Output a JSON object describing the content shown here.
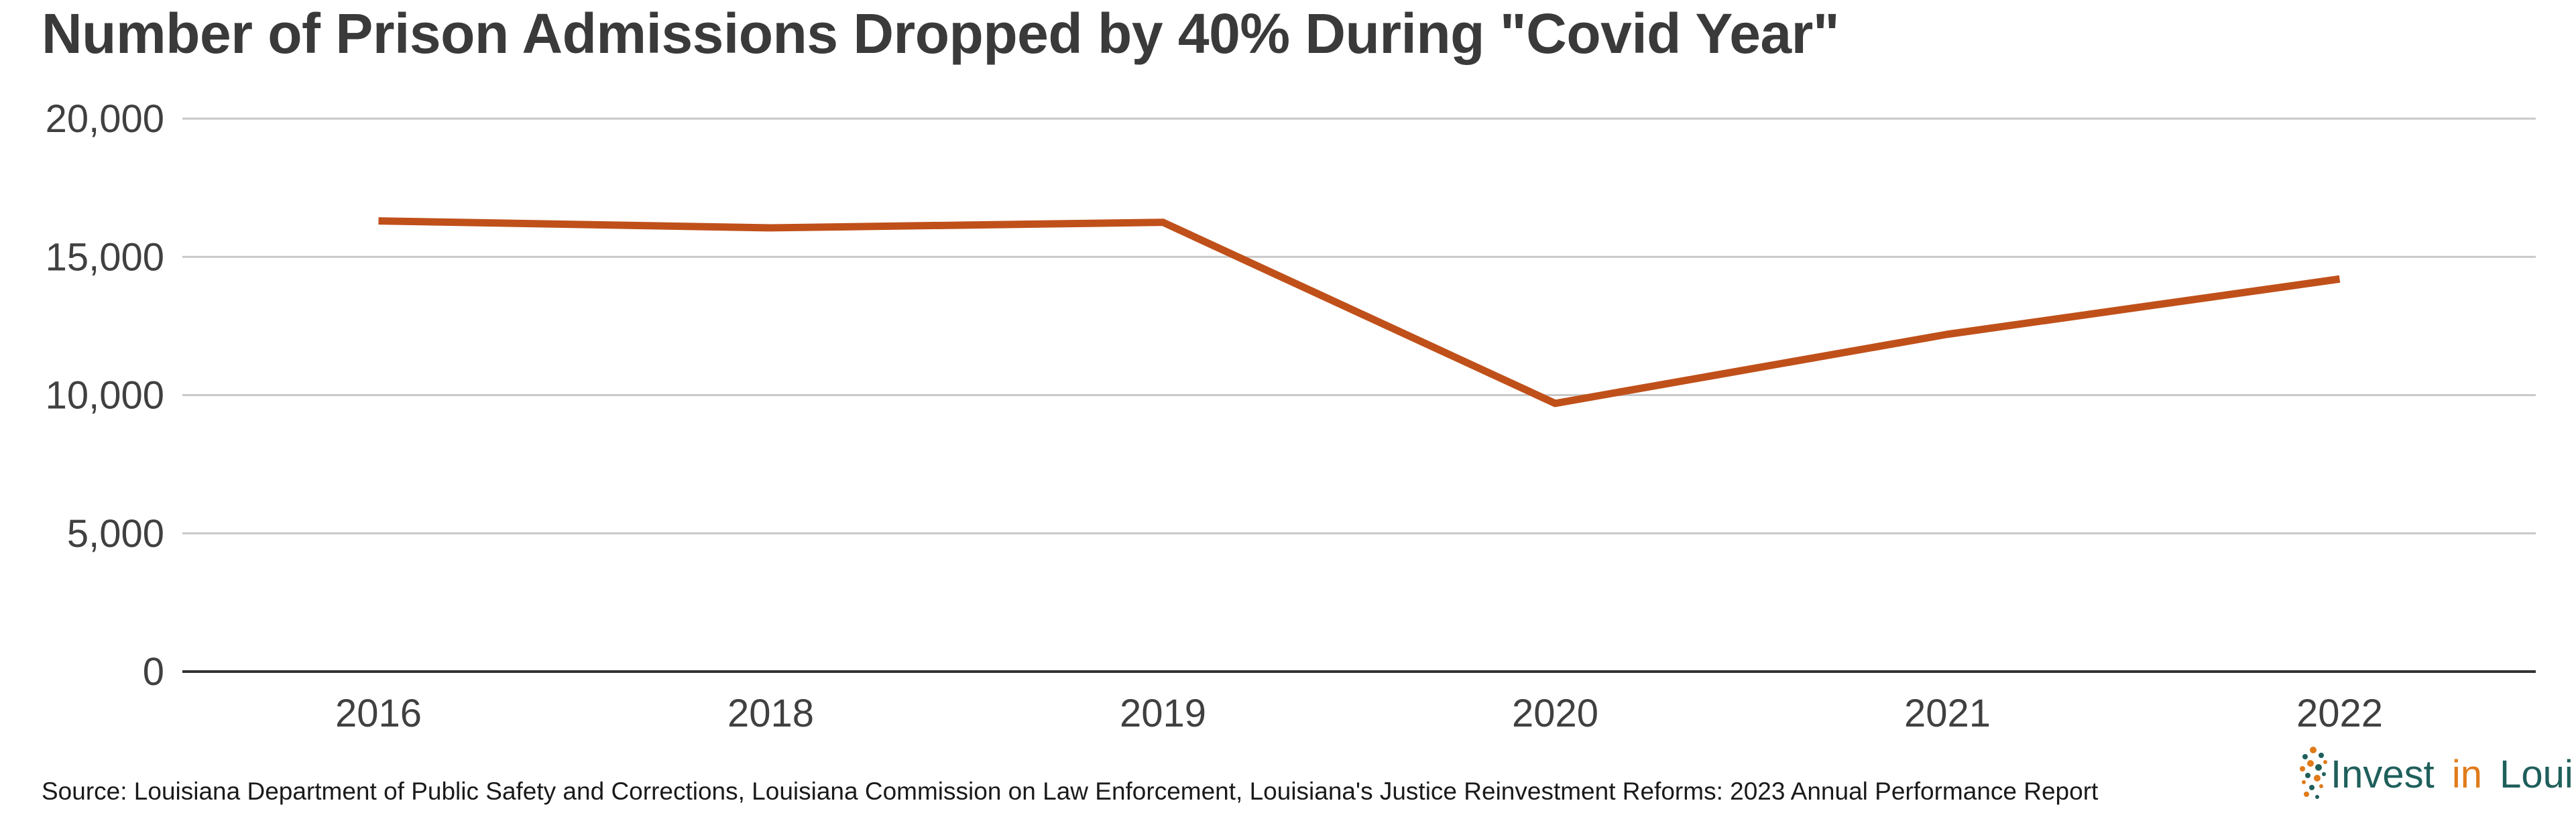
{
  "chart_data": {
    "type": "line",
    "title": "Number of Prison Admissions Dropped by 40% During \"Covid Year\"",
    "xlabel": "",
    "ylabel": "",
    "categories": [
      "2016",
      "2018",
      "2019",
      "2020",
      "2021",
      "2022"
    ],
    "series": [
      {
        "values": [
          16300,
          16050,
          16250,
          9700,
          12200,
          14200
        ]
      }
    ],
    "ylim": [
      0,
      20000
    ],
    "yticks": [
      0,
      5000,
      10000,
      15000,
      20000
    ],
    "ytick_labels": [
      "0",
      "5,000",
      "10,000",
      "15,000",
      "20,000"
    ],
    "grid": true,
    "line_color": "#c0501a",
    "source": "Source: Louisiana Department of Public Safety and Corrections, Louisiana Commission on Law Enforcement, Louisiana's Justice Reinvestment Reforms: 2023 Annual Performance Report"
  },
  "logo": {
    "word1": "Invest",
    "word2": "in",
    "word3": "Louisiana",
    "colors": {
      "dark": "#1f5f5b",
      "accent": "#e07b1a"
    }
  }
}
